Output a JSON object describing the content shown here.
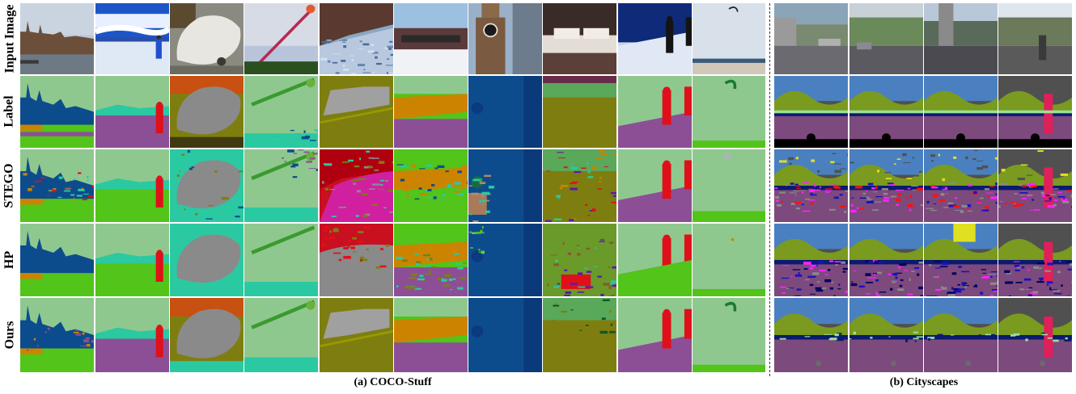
{
  "figure": {
    "row_labels": [
      "Input Image",
      "Label",
      "STEGO",
      "HP",
      "Ours"
    ],
    "captions": {
      "coco": "(a) COCO-Stuff",
      "cityscapes": "(b) Cityscapes"
    }
  },
  "panels": {
    "coco_columns": 10,
    "cityscapes_columns": 4,
    "coco_scenes": [
      "Westminster skyline",
      "snow skier",
      "polar bear",
      "kite sky",
      "bedsheet close-up",
      "snowy train",
      "clock tower",
      "hotel bed",
      "ski slope people",
      "beach kite"
    ],
    "cityscapes_scenes": [
      "street",
      "street",
      "street",
      "street"
    ]
  },
  "palette": {
    "sky_green": "#8fc88f",
    "bright_green": "#52c41a",
    "purple": "#8c4f96",
    "navy": "#0d4c8c",
    "teal": "#2bc9a1",
    "gray": "#8a8a8a",
    "olive": "#7e7e10",
    "orange": "#cc8400",
    "red": "#e0101a",
    "magenta": "#e020e0",
    "dark_gray": "#505050",
    "mauve": "#7c4a7c"
  }
}
